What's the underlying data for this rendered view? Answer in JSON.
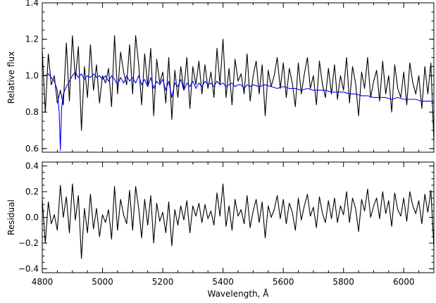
{
  "chart_data": [
    {
      "type": "line",
      "panel": "top",
      "ylabel": "Relative flux",
      "xlim": [
        4800,
        6100
      ],
      "ylim": [
        0.58,
        1.4
      ],
      "x_ticks": [
        4800,
        5000,
        5200,
        5400,
        5600,
        5800,
        6000
      ],
      "y_ticks": [
        0.6,
        0.8,
        1.0,
        1.2,
        1.4
      ],
      "y_tick_labels": [
        "0.6",
        "0.8",
        "1.0",
        "1.2",
        "1.4"
      ],
      "grid": false,
      "series": [
        {
          "color": "#000000",
          "x": [
            4800,
            4810,
            4820,
            4830,
            4840,
            4850,
            4860,
            4870,
            4880,
            4890,
            4900,
            4910,
            4920,
            4930,
            4940,
            4950,
            4960,
            4970,
            4980,
            4990,
            5000,
            5010,
            5020,
            5030,
            5040,
            5050,
            5060,
            5070,
            5080,
            5090,
            5100,
            5110,
            5120,
            5130,
            5140,
            5150,
            5160,
            5170,
            5180,
            5190,
            5200,
            5210,
            5220,
            5230,
            5240,
            5250,
            5260,
            5270,
            5280,
            5290,
            5300,
            5310,
            5320,
            5330,
            5340,
            5350,
            5360,
            5370,
            5380,
            5390,
            5400,
            5410,
            5420,
            5430,
            5440,
            5450,
            5460,
            5470,
            5480,
            5490,
            5500,
            5510,
            5520,
            5530,
            5540,
            5550,
            5560,
            5570,
            5580,
            5590,
            5600,
            5610,
            5620,
            5630,
            5640,
            5650,
            5660,
            5670,
            5680,
            5690,
            5700,
            5710,
            5720,
            5730,
            5740,
            5750,
            5760,
            5770,
            5780,
            5790,
            5800,
            5810,
            5820,
            5830,
            5840,
            5850,
            5860,
            5870,
            5880,
            5890,
            5900,
            5910,
            5920,
            5930,
            5940,
            5950,
            5960,
            5970,
            5980,
            5990,
            6000,
            6010,
            6020,
            6030,
            6040,
            6050,
            6060,
            6070,
            6080,
            6090,
            6100
          ],
          "y": [
            1.14,
            0.8,
            1.12,
            0.95,
            1.0,
            0.85,
            0.92,
            0.84,
            1.18,
            0.86,
            1.22,
            0.98,
            1.16,
            0.7,
            1.05,
            0.88,
            1.17,
            0.92,
            1.06,
            0.85,
            1.0,
            0.96,
            1.04,
            0.83,
            1.22,
            0.9,
            1.13,
            1.02,
            0.95,
            1.17,
            0.9,
            1.22,
            1.06,
            0.84,
            1.12,
            0.94,
            1.15,
            0.78,
            1.09,
            0.96,
            1.02,
            0.85,
            1.1,
            0.76,
            1.03,
            0.88,
            1.05,
            0.92,
            1.1,
            0.82,
            1.05,
            0.95,
            1.08,
            0.9,
            1.06,
            0.93,
            1.02,
            0.88,
            1.15,
            0.95,
            1.2,
            0.88,
            1.04,
            0.84,
            1.09,
            0.97,
            1.01,
            0.9,
            1.12,
            0.86,
            1.0,
            1.08,
            0.9,
            1.06,
            0.78,
            1.03,
            0.94,
            1.0,
            1.1,
            0.93,
            1.07,
            0.88,
            1.04,
            0.96,
            0.83,
            1.07,
            0.9,
            1.01,
            1.1,
            0.93,
            1.0,
            0.84,
            1.08,
            0.95,
            0.88,
            1.04,
            0.9,
            1.06,
            0.87,
            1.0,
            0.92,
            1.1,
            0.85,
            1.05,
            0.96,
            0.78,
            1.02,
            0.93,
            1.1,
            0.88,
            0.97,
            1.03,
            0.86,
            1.08,
            0.9,
            1.0,
            0.8,
            1.06,
            0.93,
            0.88,
            1.02,
            0.84,
            1.07,
            0.96,
            0.9,
            1.0,
            0.82,
            1.05,
            0.9,
            1.07,
            0.64
          ]
        },
        {
          "color": "#0000ff",
          "x": [
            4800,
            4810,
            4820,
            4830,
            4840,
            4850,
            4856,
            4860,
            4864,
            4870,
            4880,
            4890,
            4900,
            4910,
            4920,
            4930,
            4940,
            4950,
            4960,
            4970,
            4980,
            4990,
            5000,
            5010,
            5020,
            5030,
            5040,
            5050,
            5060,
            5070,
            5080,
            5090,
            5100,
            5110,
            5120,
            5130,
            5140,
            5150,
            5160,
            5170,
            5180,
            5190,
            5200,
            5210,
            5220,
            5230,
            5240,
            5250,
            5260,
            5270,
            5280,
            5290,
            5300,
            5310,
            5320,
            5330,
            5340,
            5350,
            5360,
            5370,
            5380,
            5390,
            5400,
            5410,
            5420,
            5430,
            5440,
            5450,
            5460,
            5470,
            5480,
            5490,
            5500,
            5520,
            5540,
            5560,
            5580,
            5600,
            5620,
            5640,
            5660,
            5680,
            5700,
            5720,
            5740,
            5760,
            5780,
            5800,
            5820,
            5840,
            5860,
            5880,
            5900,
            5920,
            5940,
            5960,
            5980,
            6000,
            6020,
            6040,
            6060,
            6080,
            6100
          ],
          "y": [
            1.0,
            1.0,
            1.01,
            0.99,
            0.97,
            0.92,
            0.8,
            0.59,
            0.82,
            0.9,
            0.94,
            0.97,
            1.0,
            1.02,
            0.99,
            1.01,
            0.98,
            1.0,
            0.99,
            1.01,
            0.99,
            1.0,
            0.98,
            1.0,
            0.97,
            1.0,
            0.98,
            0.95,
            0.99,
            0.96,
            1.0,
            0.97,
            0.99,
            0.96,
            1.0,
            0.95,
            0.98,
            0.94,
            0.99,
            0.93,
            0.97,
            0.95,
            0.98,
            0.92,
            0.97,
            0.88,
            0.96,
            0.94,
            0.98,
            0.92,
            0.96,
            0.94,
            0.97,
            0.93,
            0.96,
            0.94,
            0.97,
            0.95,
            0.96,
            0.94,
            0.97,
            0.95,
            0.96,
            0.94,
            0.95,
            0.96,
            0.94,
            0.95,
            0.95,
            0.93,
            0.95,
            0.94,
            0.95,
            0.94,
            0.95,
            0.94,
            0.93,
            0.94,
            0.93,
            0.93,
            0.92,
            0.93,
            0.92,
            0.92,
            0.92,
            0.91,
            0.91,
            0.91,
            0.9,
            0.9,
            0.89,
            0.89,
            0.88,
            0.88,
            0.88,
            0.87,
            0.88,
            0.87,
            0.87,
            0.87,
            0.86,
            0.86,
            0.86
          ]
        }
      ]
    },
    {
      "type": "line",
      "panel": "bottom",
      "xlabel": "Wavelength, Å",
      "ylabel": "Residual",
      "xlim": [
        4800,
        6100
      ],
      "ylim": [
        -0.43,
        0.43
      ],
      "x_ticks": [
        4800,
        5000,
        5200,
        5400,
        5600,
        5800,
        6000
      ],
      "x_tick_labels": [
        "4800",
        "5000",
        "5200",
        "5400",
        "5600",
        "5800",
        "6000"
      ],
      "y_ticks": [
        -0.4,
        -0.2,
        0.0,
        0.2,
        0.4
      ],
      "y_tick_labels": [
        "−0.4",
        "−0.2",
        "0.0",
        "0.2",
        "0.4"
      ],
      "grid": false,
      "series": [
        {
          "color": "#000000",
          "x": [
            4800,
            4810,
            4820,
            4830,
            4840,
            4850,
            4860,
            4870,
            4880,
            4890,
            4900,
            4910,
            4920,
            4930,
            4940,
            4950,
            4960,
            4970,
            4980,
            4990,
            5000,
            5010,
            5020,
            5030,
            5040,
            5050,
            5060,
            5070,
            5080,
            5090,
            5100,
            5110,
            5120,
            5130,
            5140,
            5150,
            5160,
            5170,
            5180,
            5190,
            5200,
            5210,
            5220,
            5230,
            5240,
            5250,
            5260,
            5270,
            5280,
            5290,
            5300,
            5310,
            5320,
            5330,
            5340,
            5350,
            5360,
            5370,
            5380,
            5390,
            5400,
            5410,
            5420,
            5430,
            5440,
            5450,
            5460,
            5470,
            5480,
            5490,
            5500,
            5510,
            5520,
            5530,
            5540,
            5550,
            5560,
            5570,
            5580,
            5590,
            5600,
            5610,
            5620,
            5630,
            5640,
            5650,
            5660,
            5670,
            5680,
            5690,
            5700,
            5710,
            5720,
            5730,
            5740,
            5750,
            5760,
            5770,
            5780,
            5790,
            5800,
            5810,
            5820,
            5830,
            5840,
            5850,
            5860,
            5870,
            5880,
            5890,
            5900,
            5910,
            5920,
            5930,
            5940,
            5950,
            5960,
            5970,
            5980,
            5990,
            6000,
            6010,
            6020,
            6030,
            6040,
            6050,
            6060,
            6070,
            6080,
            6090,
            6100
          ],
          "y": [
            0.14,
            -0.2,
            0.12,
            -0.05,
            0.02,
            -0.1,
            0.25,
            0.0,
            0.16,
            -0.12,
            0.26,
            -0.02,
            0.17,
            -0.32,
            0.07,
            -0.12,
            0.18,
            -0.09,
            0.07,
            -0.15,
            0.02,
            -0.04,
            0.06,
            -0.17,
            0.24,
            -0.1,
            0.14,
            0.02,
            -0.05,
            0.21,
            -0.1,
            0.24,
            0.07,
            -0.16,
            0.14,
            -0.06,
            0.17,
            -0.2,
            0.11,
            -0.03,
            0.04,
            -0.12,
            0.12,
            -0.22,
            0.06,
            -0.06,
            0.09,
            -0.02,
            0.13,
            -0.12,
            0.09,
            0.01,
            0.11,
            -0.04,
            0.1,
            -0.01,
            0.05,
            -0.06,
            0.19,
            0.01,
            0.26,
            -0.07,
            0.09,
            -0.1,
            0.14,
            0.01,
            0.06,
            -0.05,
            0.17,
            -0.08,
            0.05,
            0.14,
            -0.04,
            0.12,
            -0.16,
            0.09,
            0.0,
            0.06,
            0.17,
            -0.01,
            0.14,
            -0.05,
            0.11,
            0.04,
            -0.1,
            0.15,
            -0.02,
            0.09,
            0.18,
            0.01,
            0.08,
            -0.08,
            0.16,
            0.03,
            -0.04,
            0.13,
            -0.01,
            0.15,
            -0.04,
            0.09,
            0.02,
            0.2,
            -0.04,
            0.15,
            0.07,
            -0.11,
            0.14,
            0.05,
            0.22,
            0.0,
            0.09,
            0.15,
            -0.01,
            0.2,
            0.03,
            0.13,
            -0.07,
            0.19,
            0.06,
            0.01,
            0.15,
            -0.03,
            0.2,
            0.09,
            0.03,
            0.13,
            -0.05,
            0.18,
            0.04,
            0.21,
            -0.23
          ]
        }
      ]
    }
  ]
}
